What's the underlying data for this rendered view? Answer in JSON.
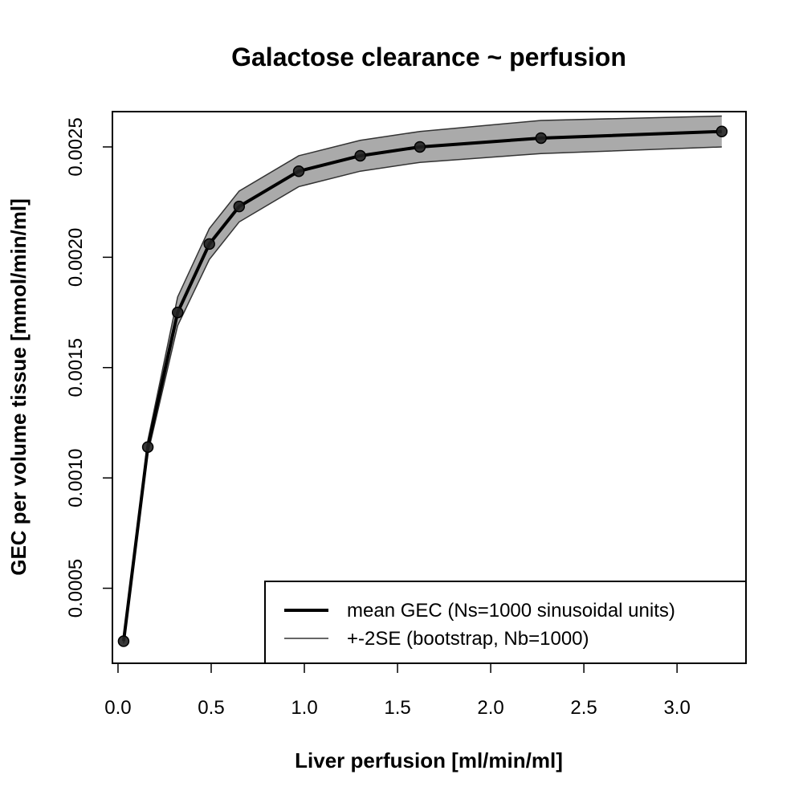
{
  "chart_data": {
    "type": "line",
    "title": "Galactose clearance ~ perfusion",
    "xlabel": "Liver perfusion [ml/min/ml]",
    "ylabel": "GEC per volume tissue [mmol/min/ml]",
    "xlim": [
      -0.03,
      3.37
    ],
    "ylim": [
      0.00016,
      0.00266
    ],
    "xticks": [
      0.0,
      0.5,
      1.0,
      1.5,
      2.0,
      2.5,
      3.0
    ],
    "xtick_labels": [
      "0.0",
      "0.5",
      "1.0",
      "1.5",
      "2.0",
      "2.5",
      "3.0"
    ],
    "yticks": [
      0.0005,
      0.001,
      0.0015,
      0.002,
      0.0025
    ],
    "ytick_labels": [
      "0.0005",
      "0.0010",
      "0.0015",
      "0.0020",
      "0.0025"
    ],
    "grid": false,
    "legend_position": "bottom-right",
    "x": [
      0.03,
      0.16,
      0.32,
      0.49,
      0.65,
      0.97,
      1.3,
      1.62,
      2.27,
      3.24
    ],
    "series": [
      {
        "name": "mean GEC (Ns=1000 sinusoidal units)",
        "values": [
          0.00026,
          0.00114,
          0.00175,
          0.00206,
          0.00223,
          0.00239,
          0.00246,
          0.0025,
          0.00254,
          0.00257
        ],
        "color": "#000000"
      },
      {
        "name": "+-2SE (bootstrap, Nb=1000)",
        "upper": [
          0.00027,
          0.00117,
          0.00182,
          0.00213,
          0.0023,
          0.00246,
          0.00253,
          0.00257,
          0.00262,
          0.00264
        ],
        "lower": [
          0.00025,
          0.00111,
          0.00169,
          0.00199,
          0.00216,
          0.00232,
          0.00239,
          0.00243,
          0.00247,
          0.0025
        ],
        "color": "#333333",
        "fill": "#aaaaaa"
      }
    ]
  }
}
